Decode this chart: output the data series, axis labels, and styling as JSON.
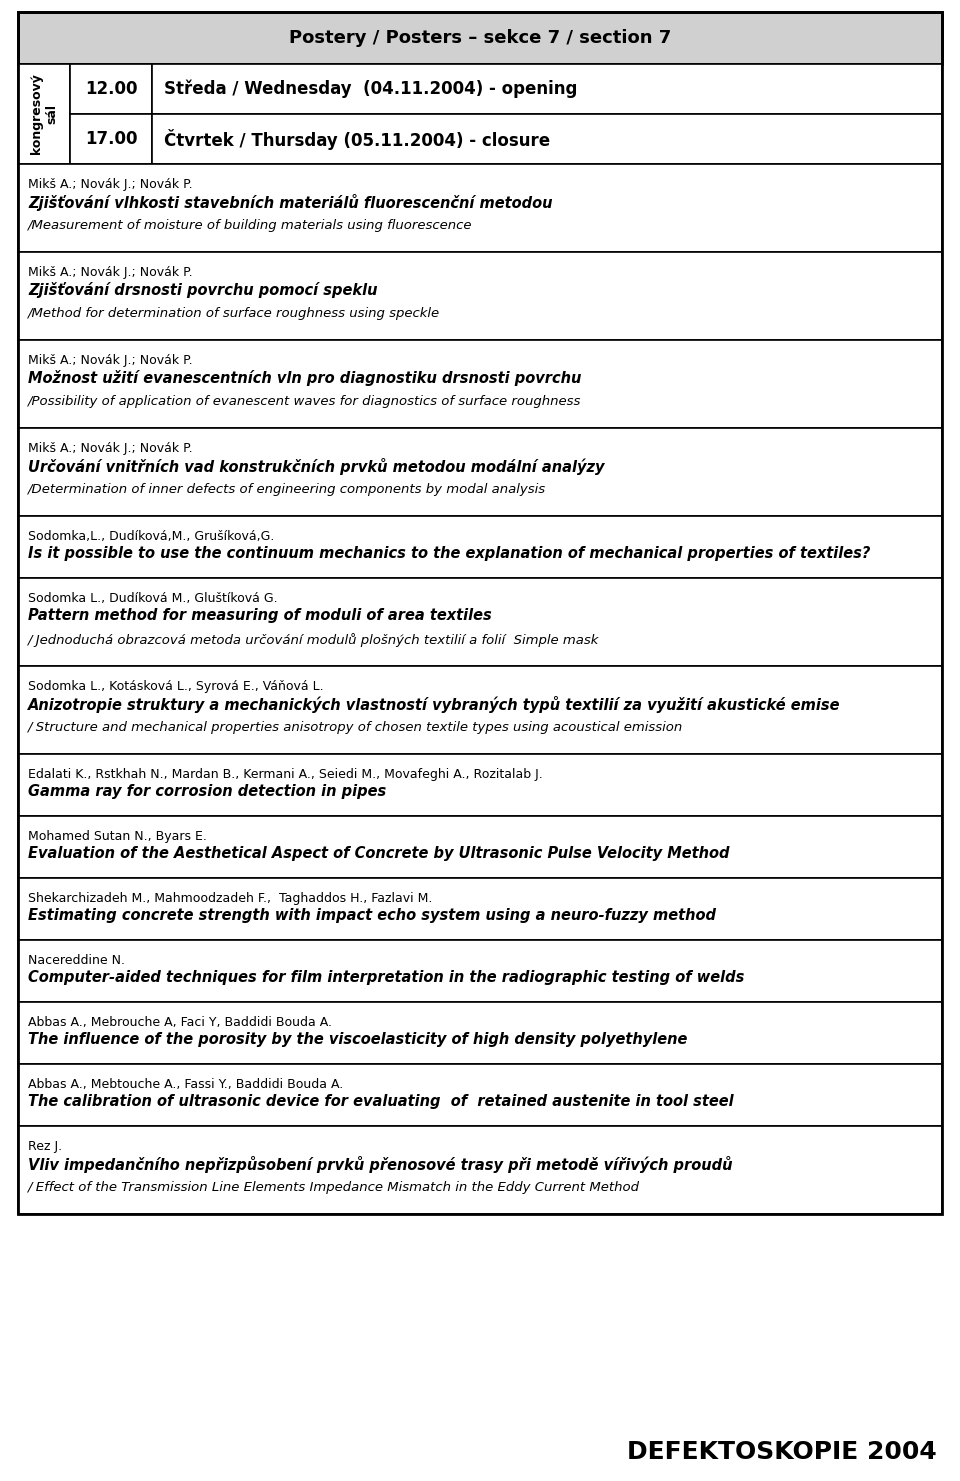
{
  "title": "Postery / Posters – sekce 7 / section 7",
  "header_bg": "#d0d0d0",
  "row_bg": "#ffffff",
  "border_color": "#000000",
  "footer_text": "DEFEKTOSKOPIE 2004",
  "col1_label": "kongresový\nsál",
  "time_rows": [
    {
      "time": "12.00",
      "text": "Středa / Wednesday  (04.11.2004) - opening"
    },
    {
      "time": "17.00",
      "text": "Čtvrtek / Thursday (05.11.2004) - closure"
    }
  ],
  "entries": [
    {
      "authors": "Mikš A.; Novák J.; Novák P.",
      "bold": "Zjišťování vlhkosti stavebních materiálů fluorescenční metodou",
      "italic": "/Measurement of moisture of building materials using fluorescence"
    },
    {
      "authors": "Mikš A.; Novák J.; Novák P.",
      "bold": "Zjišťování drsnosti povrchu pomocí speklu",
      "italic": "/Method for determination of surface roughness using speckle"
    },
    {
      "authors": "Mikš A.; Novák J.; Novák P.",
      "bold": "Možnost užití evanescentních vln pro diagnostiku drsnosti povrchu",
      "italic": "/Possibility of application of evanescent waves for diagnostics of surface roughness"
    },
    {
      "authors": "Mikš A.; Novák J.; Novák P.",
      "bold": "Určování vnitřních vad konstrukčních prvků metodou modální analýzy",
      "italic": "/Determination of inner defects of engineering components by modal analysis"
    },
    {
      "authors": "Sodomka,L., Dudíková,M., Grušíková,G.",
      "bold": "Is it possible to use the continuum mechanics to the explanation of mechanical properties of textiles?",
      "italic": ""
    },
    {
      "authors": "Sodomka L., Dudíková M., Gluštíková G.",
      "bold": "Pattern method for measuring of moduli of area textiles",
      "italic": "/ Jednoduchá obrazcová metoda určování modulů plošných textilií a folií  Simple mask"
    },
    {
      "authors": "Sodomka L., Kotásková L., Syrová E., Váňová L.",
      "bold": "Anizotropie struktury a mechanických vlastností vybraných typů textilií za využití akustické emise",
      "italic": "/ Structure and mechanical properties anisotropy of chosen textile types using acoustical emission"
    },
    {
      "authors": "Edalati K., Rstkhah N., Mardan B., Kermani A., Seiedi M., Movafeghi A., Rozitalab J.",
      "bold": "Gamma ray for corrosion detection in pipes",
      "italic": ""
    },
    {
      "authors": "Mohamed Sutan N., Byars E.",
      "bold": "Evaluation of the Aesthetical Aspect of Concrete by Ultrasonic Pulse Velocity Method",
      "italic": ""
    },
    {
      "authors": "Shekarchizadeh M., Mahmoodzadeh F.,  Taghaddos H., Fazlavi M.",
      "bold": "Estimating concrete strength with impact echo system using a neuro-fuzzy method",
      "italic": ""
    },
    {
      "authors": "Nacereddine N.",
      "bold": "Computer-aided techniques for film interpretation in the radiographic testing of welds",
      "italic": ""
    },
    {
      "authors": "Abbas A., Mebrouche A, Faci Y, Baddidi Bouda A.",
      "bold": "The influence of the porosity by the viscoelasticity of high density polyethylene",
      "italic": ""
    },
    {
      "authors": "Abbas A., Mebtouche A., Fassi Y., Baddidi Bouda A.",
      "bold": "The calibration of ultrasonic device for evaluating  of  retained austenite in tool steel",
      "italic": ""
    },
    {
      "authors": "Rez J.",
      "bold": "Vliv impedančního nepřizpůsobení prvků přenosové trasy při metodě vířivých proudů",
      "italic": "/ Effect of the Transmission Line Elements Impedance Mismatch in the Eddy Current Method"
    }
  ]
}
